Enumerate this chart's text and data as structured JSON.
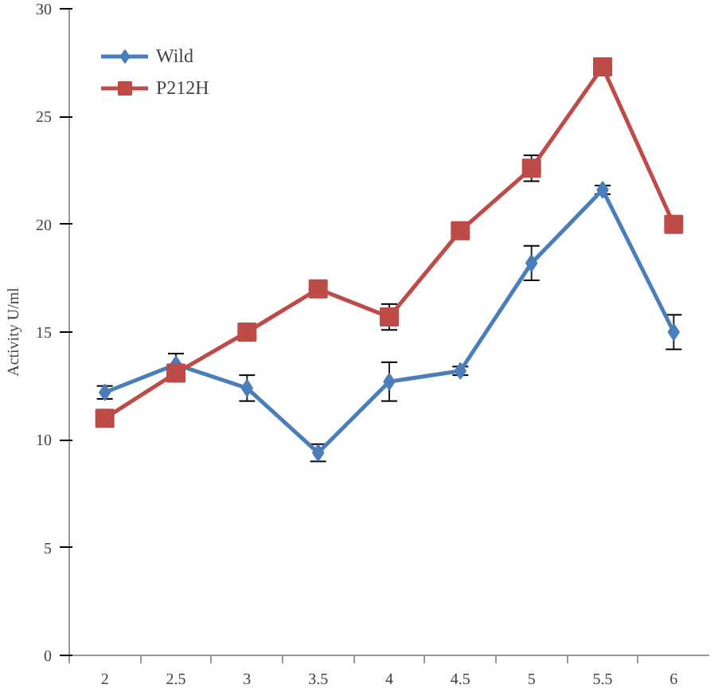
{
  "chart_data": {
    "type": "line",
    "ylabel": "Activity U/ml",
    "categories": [
      "2",
      "2.5",
      "3",
      "3.5",
      "4",
      "4.5",
      "5",
      "5.5",
      "6"
    ],
    "series": [
      {
        "name": "Wild",
        "color": "#4a7ebb",
        "marker": "diamond",
        "values": [
          12.2,
          13.5,
          12.4,
          9.4,
          12.7,
          13.2,
          18.2,
          21.6,
          15.0
        ],
        "errors": [
          0.3,
          0.5,
          0.6,
          0.4,
          0.9,
          0.2,
          0.8,
          0.2,
          0.8
        ]
      },
      {
        "name": "P212H",
        "color": "#be4b48",
        "marker": "square",
        "values": [
          11.0,
          13.1,
          15.0,
          17.0,
          15.7,
          19.7,
          22.6,
          27.3,
          20.0
        ],
        "errors": [
          null,
          null,
          null,
          null,
          0.6,
          null,
          0.6,
          null,
          null
        ]
      }
    ],
    "ylim": [
      0,
      30
    ],
    "yticks": [
      0,
      5,
      10,
      15,
      20,
      25,
      30
    ],
    "grid": false,
    "legend": "top left",
    "line_style": "solid"
  }
}
